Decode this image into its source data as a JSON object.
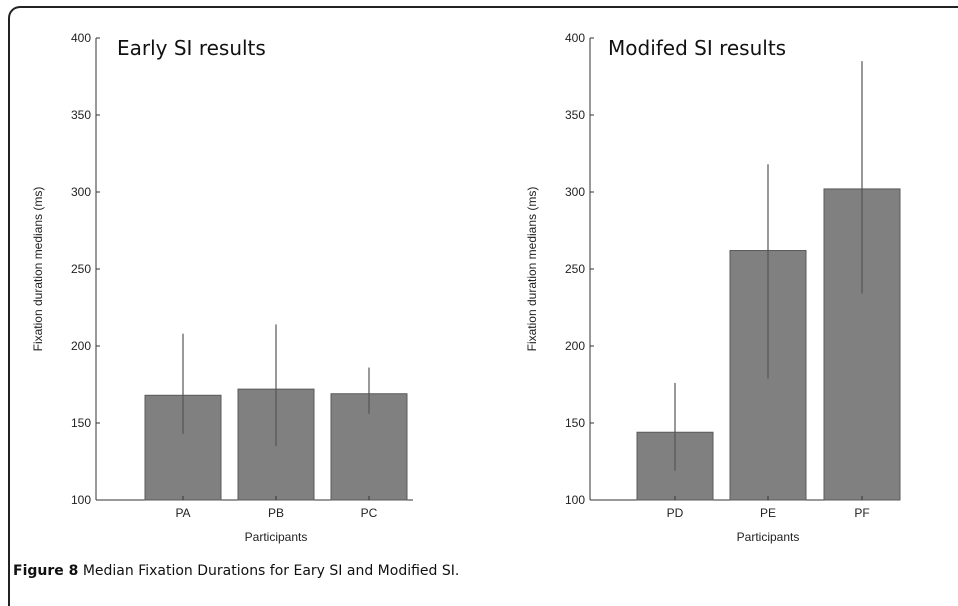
{
  "chart_data": [
    {
      "type": "bar",
      "title": "Early SI results",
      "xlabel": "Participants",
      "ylabel": "Fixation duration medians (ms)",
      "ylim": [
        100,
        400
      ],
      "yticks": [
        100,
        150,
        200,
        250,
        300,
        350,
        400
      ],
      "categories": [
        "PA",
        "PB",
        "PC"
      ],
      "values": [
        168,
        172,
        169
      ],
      "error_low": [
        143,
        135,
        156
      ],
      "error_high": [
        208,
        214,
        186
      ],
      "bar_color": "#808080"
    },
    {
      "type": "bar",
      "title": "Modifed SI results",
      "xlabel": "Participants",
      "ylabel": "Fixation duration medians (ms)",
      "ylim": [
        100,
        400
      ],
      "yticks": [
        100,
        150,
        200,
        250,
        300,
        350,
        400
      ],
      "categories": [
        "PD",
        "PE",
        "PF"
      ],
      "values": [
        144,
        262,
        302
      ],
      "error_low": [
        119,
        179,
        234
      ],
      "error_high": [
        176,
        318,
        385
      ],
      "bar_color": "#808080"
    }
  ],
  "caption": {
    "label": "Figure 8",
    "text": "Median Fixation Durations for Eary SI and Modified SI",
    "end": "."
  }
}
